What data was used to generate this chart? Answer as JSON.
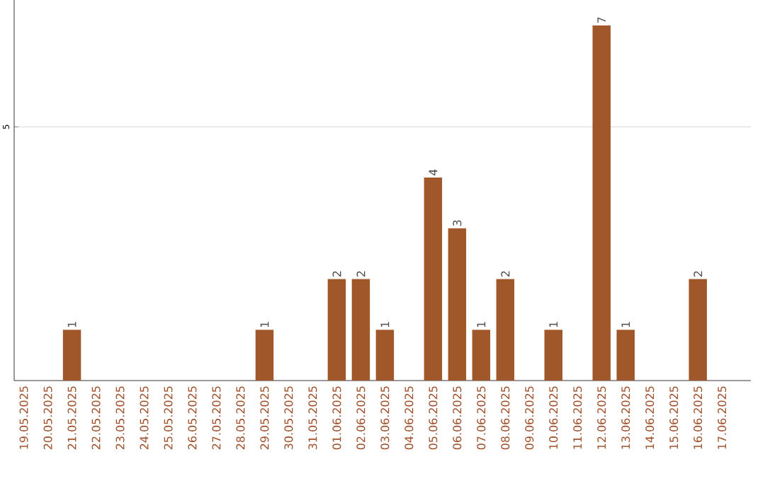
{
  "chart_data": {
    "type": "bar",
    "categories": [
      "19.05.2025",
      "20.05.2025",
      "21.05.2025",
      "22.05.2025",
      "23.05.2025",
      "24.05.2025",
      "25.05.2025",
      "26.05.2025",
      "27.05.2025",
      "28.05.2025",
      "29.05.2025",
      "30.05.2025",
      "31.05.2025",
      "01.06.2025",
      "02.06.2025",
      "03.06.2025",
      "04.06.2025",
      "05.06.2025",
      "06.06.2025",
      "07.06.2025",
      "08.06.2025",
      "09.06.2025",
      "10.06.2025",
      "11.06.2025",
      "12.06.2025",
      "13.06.2025",
      "14.06.2025",
      "15.06.2025",
      "16.06.2025",
      "17.06.2025"
    ],
    "values": [
      0,
      0,
      1,
      0,
      0,
      0,
      0,
      0,
      0,
      0,
      1,
      0,
      0,
      2,
      2,
      1,
      0,
      4,
      3,
      1,
      2,
      0,
      1,
      0,
      7,
      1,
      0,
      0,
      2,
      0
    ],
    "value_labels": [
      null,
      null,
      "1",
      null,
      null,
      null,
      null,
      null,
      null,
      null,
      "1",
      null,
      null,
      "2",
      "2",
      "1",
      null,
      "4",
      "3",
      "1",
      "2",
      null,
      "1",
      null,
      "7",
      "1",
      null,
      null,
      "2",
      null
    ],
    "color": "#a0582a",
    "ylim": [
      0,
      7.5
    ],
    "yticks": [
      5
    ],
    "grid": "y"
  }
}
